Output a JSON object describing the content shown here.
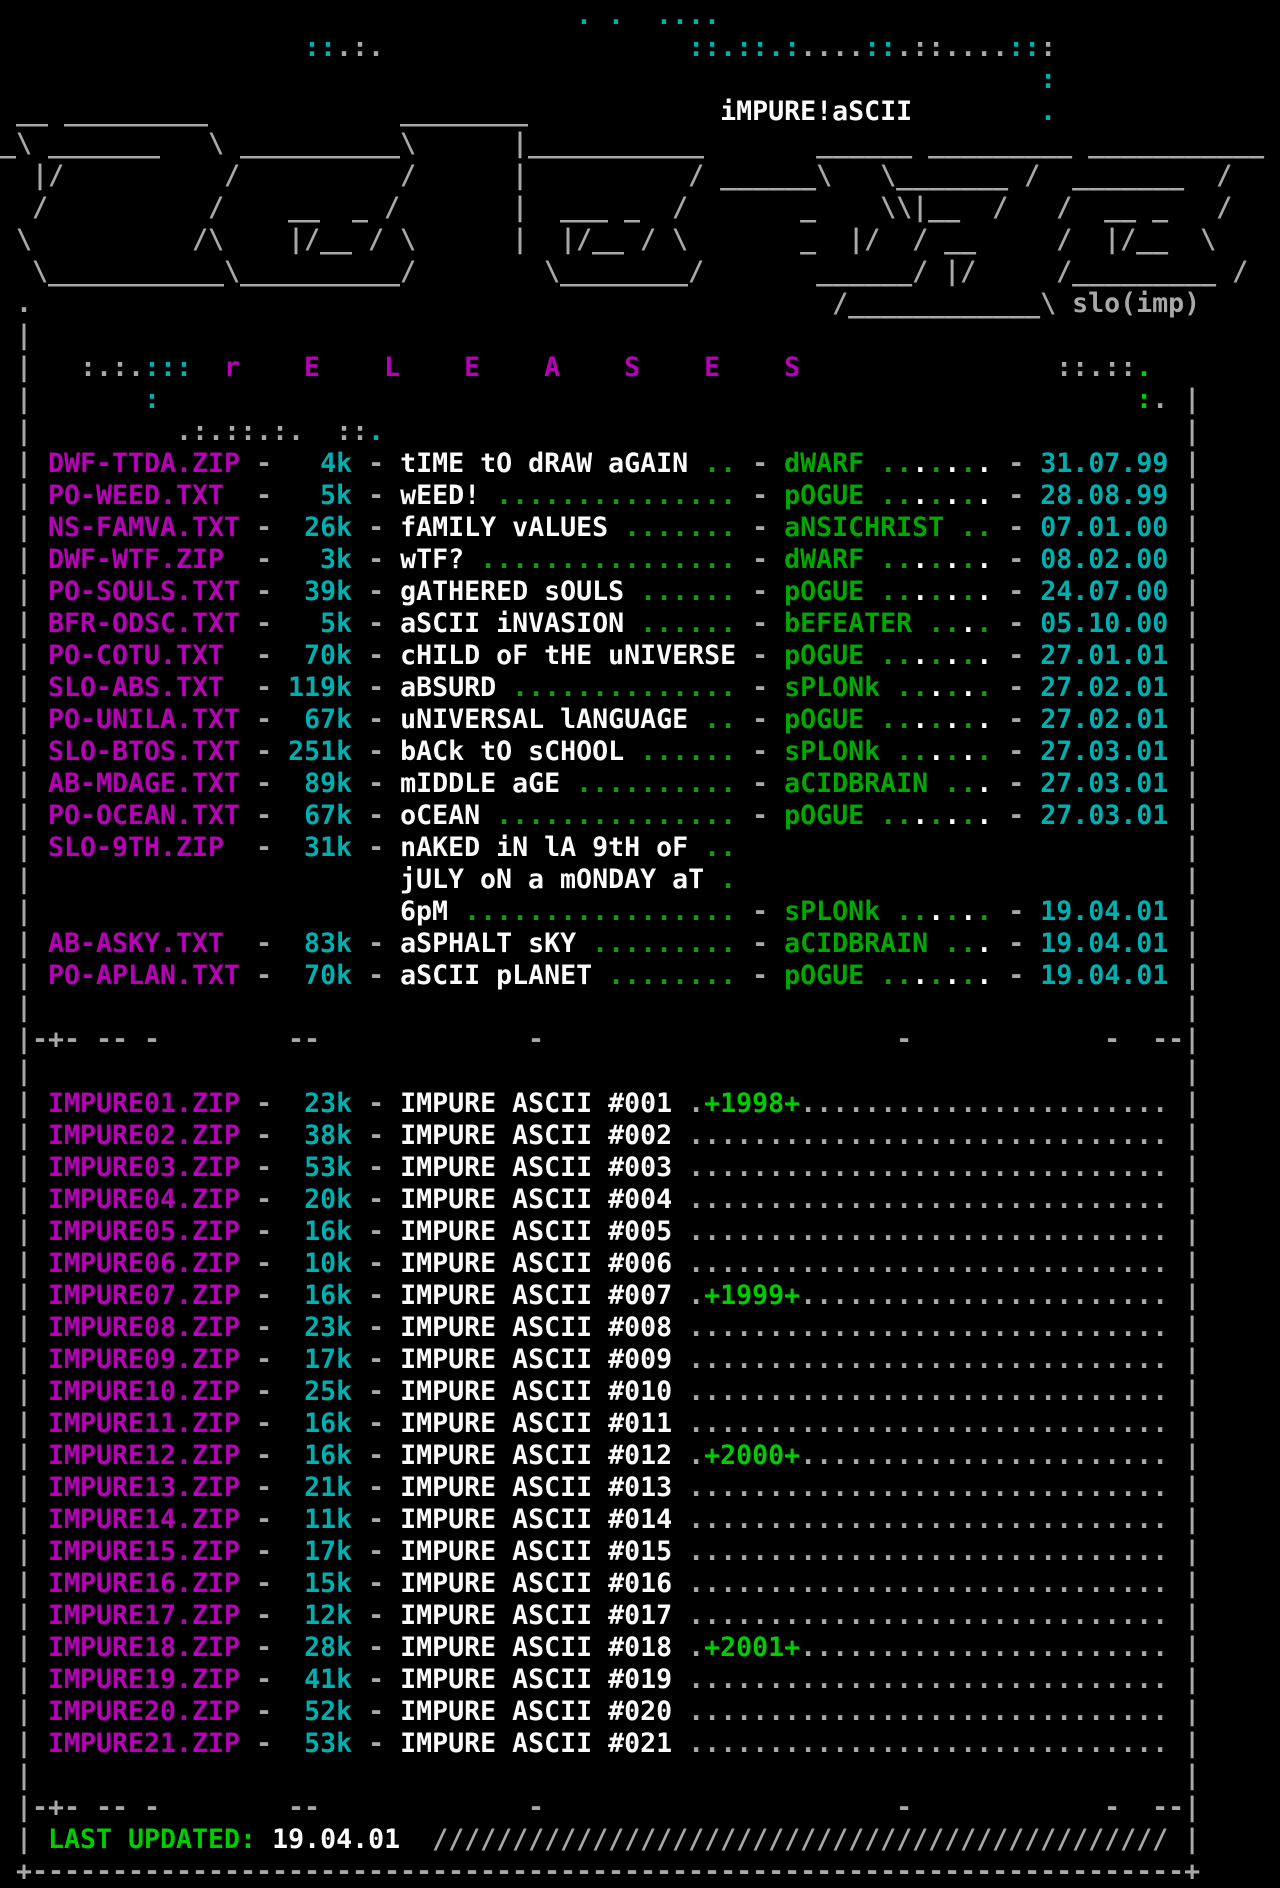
{
  "colors": {
    "G": "#A8A8A8",
    "W": "#FCFCFC",
    "M": "#B800B8",
    "C": "#00AFAF",
    "g": "#00A800",
    "L": "#00CC00"
  },
  "header": {
    "brand": "iMPURE!aSCII",
    "signature": "slo(imp)",
    "section_title": "r    E    L    E    A    S    E    S",
    "lines": [
      [
        {
          "c": "C",
          "t": "                                    . .  ...."
        }
      ],
      [
        {
          "c": "C",
          "t": "                   ::"
        },
        {
          "c": "G",
          "t": ".:."
        },
        {
          "c": "C",
          "t": "                   ::.::.:"
        },
        {
          "c": "G",
          "t": "...."
        },
        {
          "c": "C",
          "t": "::"
        },
        {
          "c": "G",
          "t": ".::...."
        },
        {
          "c": "C",
          "t": "::"
        },
        {
          "c": "G",
          "t": ":"
        }
      ],
      [
        {
          "c": "C",
          "t": "                                                                 :"
        }
      ],
      [
        {
          "c": "G",
          "t": " __ _________            ________            "
        },
        {
          "c": "W",
          "t": "iMPURE!aSCII",
          "n": "brand-title"
        },
        {
          "c": "C",
          "t": "        ."
        }
      ],
      [
        {
          "c": "G",
          "t": "_\\ _______   \\ __________\\      |___________       ______ _________ ___________"
        }
      ],
      [
        {
          "c": "G",
          "t": "  |/          /          /      |          / ______\\   \\_______ /  _______  /"
        }
      ],
      [
        {
          "c": "G",
          "t": "  /          /    __  _ /       |  ___ _  /       _    \\\\|__  /   /  __ _   /"
        }
      ],
      [
        {
          "c": "G",
          "t": " \\          /\\    |/__ / \\      |  |/__ / \\       _  |/  / __     /  |/__  \\"
        }
      ],
      [
        {
          "c": "G",
          "t": "  \\___________\\__________/        \\________/       ______/ |/     /_________ /"
        }
      ],
      [
        {
          "c": "G",
          "t": " ."
        },
        {
          "c": "G",
          "t": "                                                  /____________\\ "
        },
        {
          "c": "G",
          "t": "slo(imp)",
          "n": "artist-signature"
        }
      ],
      [
        {
          "c": "G",
          "t": " |"
        }
      ],
      [
        {
          "c": "G",
          "t": " | "
        },
        {
          "c": "G",
          "t": "  :.:."
        },
        {
          "c": "C",
          "t": ":::"
        },
        {
          "c": "M",
          "t": "  r    E    L    E    A    S    E    S",
          "n": "section-title"
        },
        {
          "c": "G",
          "t": "                ::.::"
        },
        {
          "c": "L",
          "t": "."
        }
      ],
      [
        {
          "c": "G",
          "t": " |"
        },
        {
          "c": "C",
          "t": "       :"
        },
        {
          "c": "L",
          "t": "                                                             :"
        },
        {
          "c": "G",
          "t": "."
        },
        {
          "c": "G",
          "t": " |"
        }
      ],
      [
        {
          "c": "G",
          "t": " |"
        },
        {
          "c": "G",
          "t": "         .:.::.:."
        },
        {
          "c": "G",
          "t": "  ::"
        },
        {
          "c": "C",
          "t": "."
        },
        {
          "c": "G",
          "t": "                                                  |"
        }
      ]
    ]
  },
  "releases": {
    "rows": [
      {
        "file": "DWF-TTDA.ZIP",
        "size": "4k",
        "title": "tIME tO dRAW aGAIN",
        "tfill": 2,
        "author": "dWARF",
        "afill": 7,
        "date": "31.07.99"
      },
      {
        "file": "PO-WEED.TXT",
        "size": "5k",
        "title": "wEED!",
        "tfill": 15,
        "author": "pOGUE",
        "afill": 7,
        "date": "28.08.99"
      },
      {
        "file": "NS-FAMVA.TXT",
        "size": "26k",
        "title": "fAMILY vALUES",
        "tfill": 7,
        "author": "aNSICHRIST",
        "afill": 2,
        "date": "07.01.00"
      },
      {
        "file": "DWF-WTF.ZIP",
        "size": "3k",
        "title": "wTF?",
        "tfill": 16,
        "author": "dWARF",
        "afill": 7,
        "date": "08.02.00"
      },
      {
        "file": "PO-SOULS.TXT",
        "size": "39k",
        "title": "gATHERED sOULS",
        "tfill": 6,
        "author": "pOGUE",
        "afill": 7,
        "date": "24.07.00"
      },
      {
        "file": "BFR-ODSC.TXT",
        "size": "5k",
        "title": "aSCII iNVASION",
        "tfill": 6,
        "author": "bEFEATER",
        "afill": 4,
        "date": "05.10.00"
      },
      {
        "file": "PO-COTU.TXT",
        "size": "70k",
        "title": "cHILD oF tHE uNIVERSE",
        "tfill": 0,
        "author": "pOGUE",
        "afill": 7,
        "date": "27.01.01"
      },
      {
        "file": "SLO-ABS.TXT",
        "size": "119k",
        "title": "aBSURD",
        "tfill": 14,
        "author": "sPLONk",
        "afill": 6,
        "date": "27.02.01"
      },
      {
        "file": "PO-UNILA.TXT",
        "size": "67k",
        "title": "uNIVERSAL lANGUAGE",
        "tfill": 2,
        "author": "pOGUE",
        "afill": 7,
        "date": "27.02.01"
      },
      {
        "file": "SLO-BTOS.TXT",
        "size": "251k",
        "title": "bACk tO sCHOOL",
        "tfill": 6,
        "author": "sPLONk",
        "afill": 6,
        "date": "27.03.01"
      },
      {
        "file": "AB-MDAGE.TXT",
        "size": "89k",
        "title": "mIDDLE aGE",
        "tfill": 10,
        "author": "aCIDBRAIN",
        "afill": 3,
        "date": "27.03.01"
      },
      {
        "file": "PO-OCEAN.TXT",
        "size": "67k",
        "title": "oCEAN",
        "tfill": 15,
        "author": "pOGUE",
        "afill": 7,
        "date": "27.03.01"
      },
      {
        "file": "SLO-9TH.ZIP",
        "size": "31k",
        "multiline": true,
        "lines": [
          {
            "title": "nAKED iN lA 9tH oF",
            "tfill": 2
          },
          {
            "title": "jULY oN a mONDAY aT",
            "tfill": 1
          },
          {
            "title": "6pM",
            "tfill": 17
          }
        ],
        "author": "sPLONk",
        "afill": 6,
        "date": "19.04.01"
      },
      {
        "file": "AB-ASKY.TXT",
        "size": "83k",
        "title": "aSPHALT sKY",
        "tfill": 9,
        "author": "aCIDBRAIN",
        "afill": 3,
        "date": "19.04.01"
      },
      {
        "file": "PO-APLAN.TXT",
        "size": "70k",
        "title": "aSCII pLANET",
        "tfill": 8,
        "author": "pOGUE",
        "afill": 7,
        "date": "19.04.01"
      }
    ]
  },
  "magazines": {
    "rows": [
      {
        "file": "IMPURE01.ZIP",
        "size": "23k",
        "title": "IMPURE ASCII #001",
        "year_label": "+1998+"
      },
      {
        "file": "IMPURE02.ZIP",
        "size": "38k",
        "title": "IMPURE ASCII #002"
      },
      {
        "file": "IMPURE03.ZIP",
        "size": "53k",
        "title": "IMPURE ASCII #003"
      },
      {
        "file": "IMPURE04.ZIP",
        "size": "20k",
        "title": "IMPURE ASCII #004"
      },
      {
        "file": "IMPURE05.ZIP",
        "size": "16k",
        "title": "IMPURE ASCII #005"
      },
      {
        "file": "IMPURE06.ZIP",
        "size": "10k",
        "title": "IMPURE ASCII #006"
      },
      {
        "file": "IMPURE07.ZIP",
        "size": "16k",
        "title": "IMPURE ASCII #007",
        "year_label": "+1999+"
      },
      {
        "file": "IMPURE08.ZIP",
        "size": "23k",
        "title": "IMPURE ASCII #008"
      },
      {
        "file": "IMPURE09.ZIP",
        "size": "17k",
        "title": "IMPURE ASCII #009"
      },
      {
        "file": "IMPURE10.ZIP",
        "size": "25k",
        "title": "IMPURE ASCII #010"
      },
      {
        "file": "IMPURE11.ZIP",
        "size": "16k",
        "title": "IMPURE ASCII #011"
      },
      {
        "file": "IMPURE12.ZIP",
        "size": "16k",
        "title": "IMPURE ASCII #012",
        "year_label": "+2000+"
      },
      {
        "file": "IMPURE13.ZIP",
        "size": "21k",
        "title": "IMPURE ASCII #013"
      },
      {
        "file": "IMPURE14.ZIP",
        "size": "11k",
        "title": "IMPURE ASCII #014"
      },
      {
        "file": "IMPURE15.ZIP",
        "size": "17k",
        "title": "IMPURE ASCII #015"
      },
      {
        "file": "IMPURE16.ZIP",
        "size": "15k",
        "title": "IMPURE ASCII #016"
      },
      {
        "file": "IMPURE17.ZIP",
        "size": "12k",
        "title": "IMPURE ASCII #017"
      },
      {
        "file": "IMPURE18.ZIP",
        "size": "28k",
        "title": "IMPURE ASCII #018",
        "year_label": "+2001+"
      },
      {
        "file": "IMPURE19.ZIP",
        "size": "41k",
        "title": "IMPURE ASCII #019"
      },
      {
        "file": "IMPURE20.ZIP",
        "size": "52k",
        "title": "IMPURE ASCII #020"
      },
      {
        "file": "IMPURE21.ZIP",
        "size": "53k",
        "title": "IMPURE ASCII #021"
      }
    ]
  },
  "chrome": {
    "empty_row": " |                                                                        |",
    "divider": " |-+- -- -        --             -                      -            -  --|",
    "bottom_border": " +------------------------------------------------------------------------+"
  },
  "footer": {
    "last_updated_label": "LAST UPDATED:",
    "last_updated_date": "19.04.01",
    "hatch": "//////////////////////////////////////////////"
  }
}
